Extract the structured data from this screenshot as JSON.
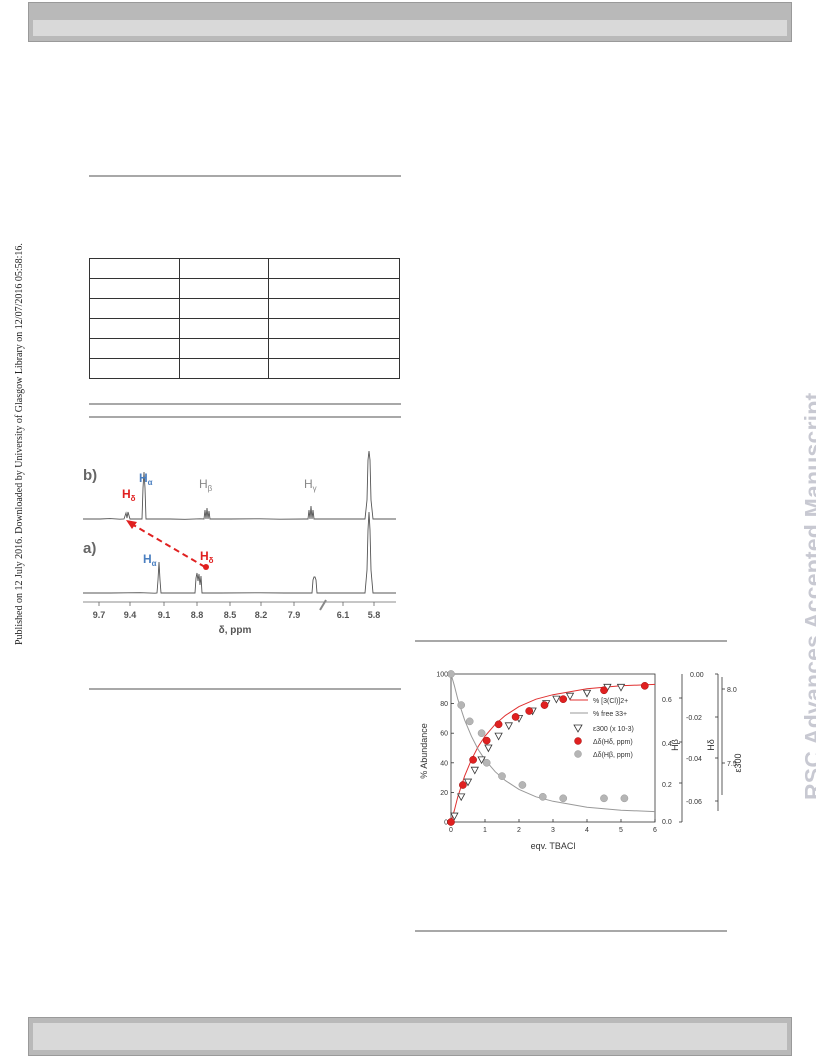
{
  "side_text": {
    "left": "Published on 12 July 2016. Downloaded by University of Glasgow Library on 12/07/2016 05:58:16.",
    "right": "RSC Advances Accepted Manuscript"
  },
  "nmr": {
    "x_ticks": [
      "9.7",
      "9.4",
      "9.1",
      "8.8",
      "8.5",
      "8.2",
      "7.9",
      "6.1",
      "5.8"
    ],
    "x_label": "δ, ppm",
    "trace_b": {
      "label": "b)",
      "peaks": {
        "h_alpha": "α",
        "h_delta": "δ",
        "h_beta": "β",
        "h_gamma": "γ"
      }
    },
    "trace_a": {
      "label": "a)",
      "peaks": {
        "h_alpha": "α",
        "h_delta": "δ"
      }
    },
    "colors": {
      "h_alpha": "#4a7fc0",
      "h_delta": "#e02020",
      "h_beta": "#888888",
      "h_gamma": "#888888"
    }
  },
  "chart_data": {
    "type": "scatter",
    "xlabel": "eqv. TBACl",
    "ylabel": "% Abundance",
    "xlim": [
      0,
      6
    ],
    "ylim": [
      0,
      100
    ],
    "x_ticks": [
      "0",
      "1",
      "2",
      "3",
      "4",
      "5",
      "6"
    ],
    "y_ticks": [
      "0",
      "20",
      "40",
      "60",
      "80",
      "100"
    ],
    "right_axes": [
      {
        "label": "Hβ",
        "ticks": [
          "0.6",
          "0.4",
          "0.2",
          "0.0"
        ]
      },
      {
        "label": "Hδ",
        "ticks": [
          "0.00",
          "-0.02",
          "-0.04",
          "-0.06"
        ]
      },
      {
        "label": "ε300",
        "ticks": [
          "8.0",
          "7.5"
        ]
      }
    ],
    "legend": [
      "% [3(Cl)]2+",
      "% free 33+",
      "ε300 (x 10-3)",
      "Δδ(Hδ, ppm)",
      "Δδ(Hβ, ppm)"
    ],
    "series": [
      {
        "name": "% [3(Cl)]2+",
        "kind": "line",
        "color": "#e03030",
        "x": [
          0,
          0.1,
          0.2,
          0.4,
          0.6,
          0.8,
          1.0,
          1.3,
          1.6,
          2.0,
          2.5,
          3.0,
          3.5,
          4.0,
          4.5,
          5.0,
          5.5,
          6.0
        ],
        "y": [
          0,
          8,
          17,
          31,
          42,
          51,
          58,
          66,
          72,
          78,
          83,
          86,
          88,
          90,
          91,
          92,
          92.5,
          93
        ]
      },
      {
        "name": "% free 33+",
        "kind": "line",
        "color": "#999999",
        "x": [
          0,
          0.1,
          0.2,
          0.4,
          0.6,
          0.8,
          1.0,
          1.3,
          1.6,
          2.0,
          2.5,
          3.0,
          3.5,
          4.0,
          4.5,
          5.0,
          5.5,
          6.0
        ],
        "y": [
          100,
          92,
          83,
          69,
          58,
          49,
          42,
          34,
          28,
          22,
          17,
          14,
          12,
          10,
          9,
          8,
          7.5,
          7
        ]
      },
      {
        "name": "ε300 (x 10-3)",
        "kind": "triangle",
        "x": [
          0.1,
          0.3,
          0.5,
          0.7,
          0.9,
          1.1,
          1.4,
          1.7,
          2.0,
          2.4,
          2.8,
          3.1,
          3.5,
          4.0,
          4.6,
          5.0
        ],
        "y": [
          4,
          17,
          27,
          35,
          42,
          50,
          58,
          65,
          70,
          75,
          80,
          83,
          85,
          87,
          91,
          91
        ]
      },
      {
        "name": "Δδ(Hδ, ppm)",
        "kind": "red-dot",
        "x": [
          0,
          0.35,
          0.65,
          1.05,
          1.4,
          1.9,
          2.3,
          2.75,
          3.3,
          4.5,
          5.7
        ],
        "y": [
          0,
          25,
          42,
          55,
          66,
          71,
          75,
          79,
          83,
          89,
          92
        ]
      },
      {
        "name": "Δδ(Hβ, ppm)",
        "kind": "grey-dot",
        "x": [
          0,
          0.3,
          0.55,
          0.9,
          1.05,
          1.5,
          2.1,
          2.7,
          3.3,
          4.5,
          5.1
        ],
        "y": [
          100,
          79,
          68,
          60,
          40,
          31,
          25,
          17,
          16,
          16,
          16
        ]
      }
    ]
  }
}
